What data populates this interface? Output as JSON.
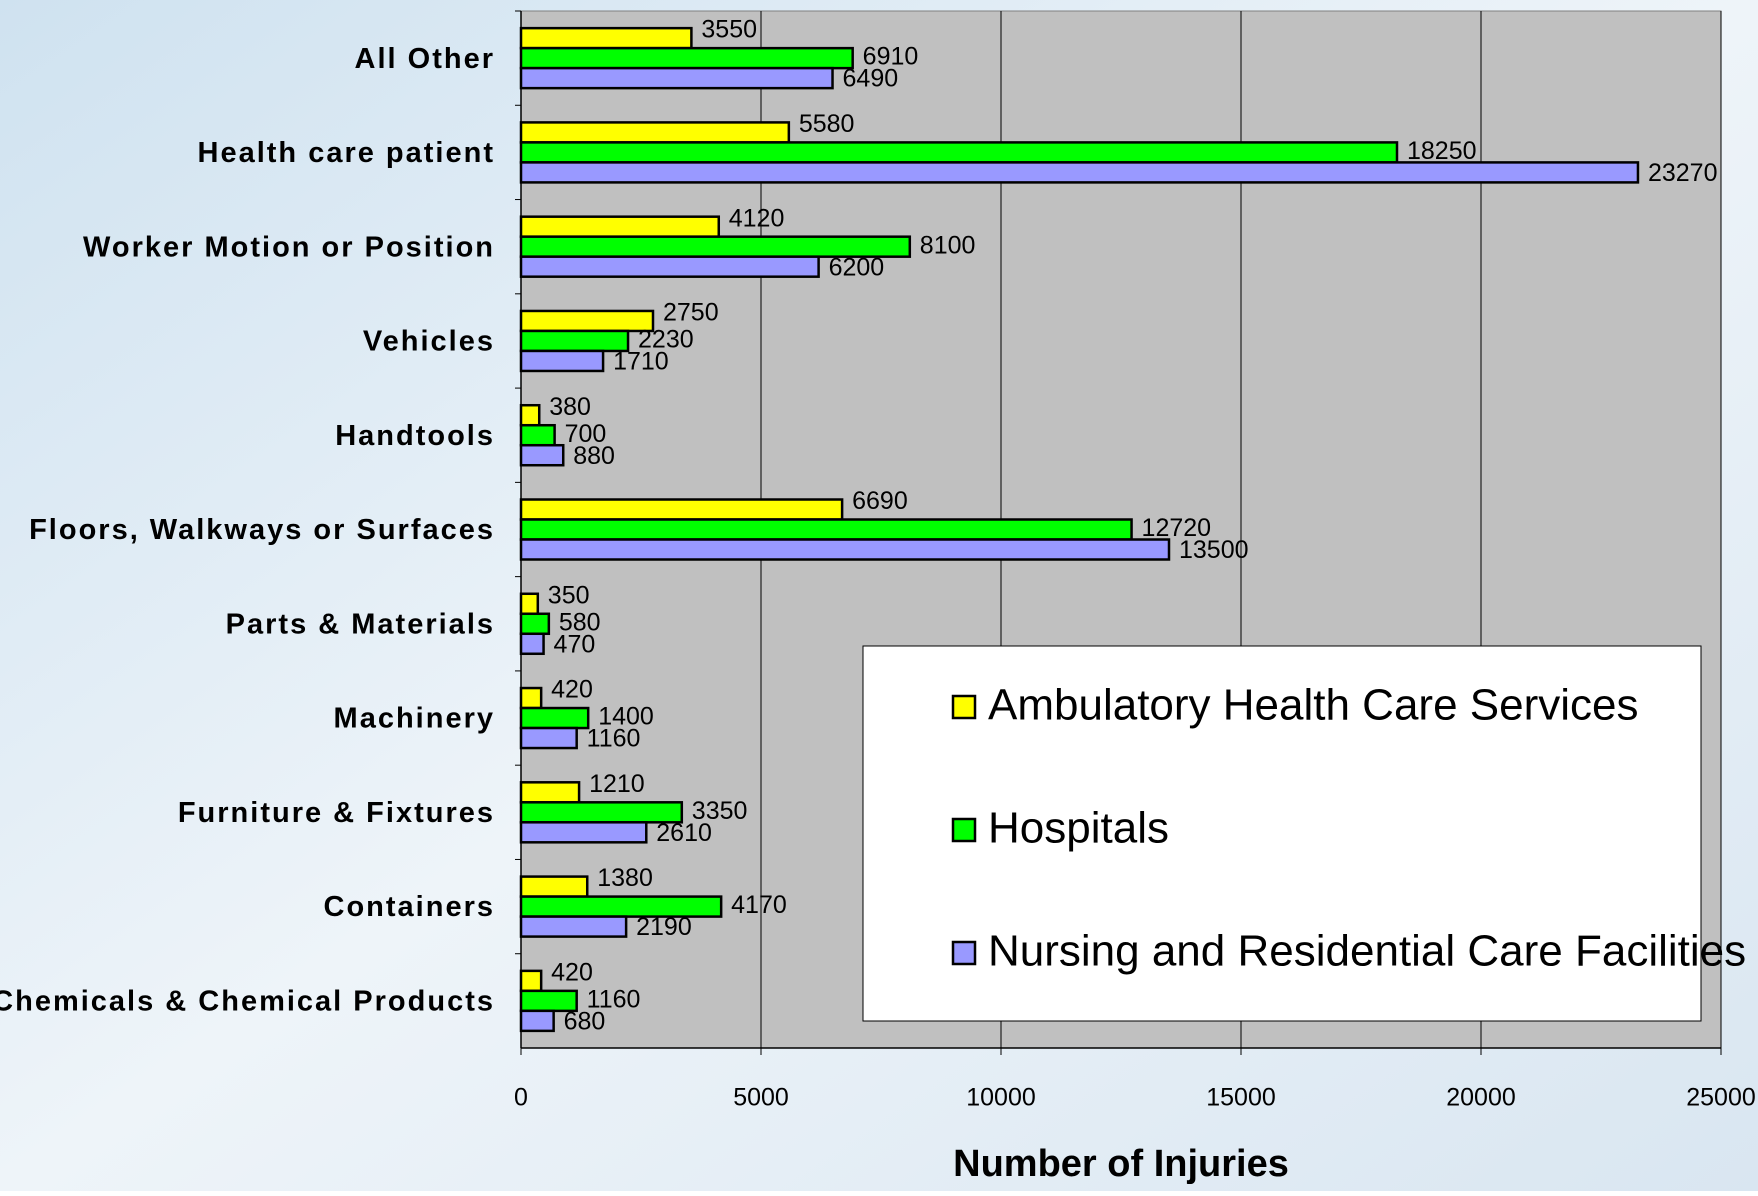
{
  "chart_data": {
    "type": "hbar",
    "categories": [
      "All Other",
      "Health care patient",
      "Worker Motion or Position",
      "Vehicles",
      "Handtools",
      "Floors, Walkways or Surfaces",
      "Parts & Materials",
      "Machinery",
      "Furniture & Fixtures",
      "Containers",
      "Chemicals & Chemical Products"
    ],
    "series": [
      {
        "name": "Ambulatory Health Care Services",
        "color": "#ffff00",
        "values": [
          3550,
          5580,
          4120,
          2750,
          380,
          6690,
          350,
          420,
          1210,
          1380,
          420
        ]
      },
      {
        "name": "Hospitals",
        "color": "#00ff00",
        "values": [
          6910,
          18250,
          8100,
          2230,
          700,
          12720,
          580,
          1400,
          3350,
          4170,
          1160
        ]
      },
      {
        "name": "Nursing and Residential Care Facilities",
        "color": "#9999ff",
        "values": [
          6490,
          23270,
          6200,
          1710,
          880,
          13500,
          470,
          1160,
          2610,
          2190,
          680
        ]
      }
    ],
    "xlabel": "Number of Injuries",
    "xlim": [
      0,
      25000
    ],
    "xticks": [
      0,
      5000,
      10000,
      15000,
      20000,
      25000
    ],
    "grid": true,
    "legend": "lower right"
  }
}
